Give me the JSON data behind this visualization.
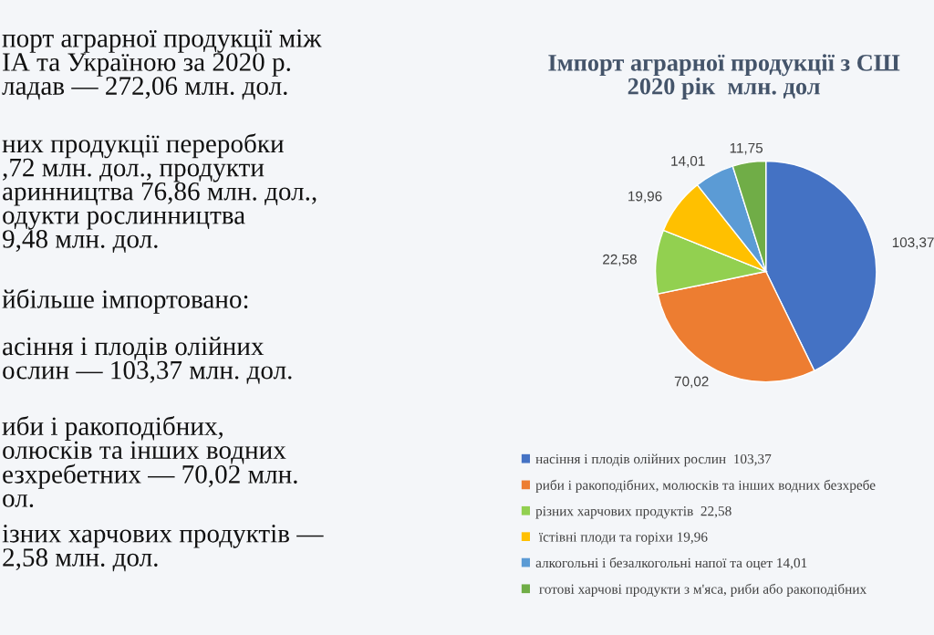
{
  "chart_data": {
    "type": "pie",
    "title": "Імпорт аграрної продукції з СШ\n2020 рік  млн. дол",
    "categories": [
      "насіння і плодів олійних рослин  103,37",
      "риби і ракоподібних, молюсків та інших водних безхребе",
      "різних харчових продуктів  22,58",
      " їстівні плоди та горіхи 19,96",
      "алкогольні і безалкогольні напої та оцет 14,01",
      " готові харчові продукти з м'яса, риби або ракоподібних"
    ],
    "values": [
      103.37,
      70.02,
      22.58,
      19.96,
      14.01,
      11.75
    ],
    "colors": [
      "#4472c4",
      "#ed7d31",
      "#92d050",
      "#ffc000",
      "#5b9bd5",
      "#70ad47"
    ],
    "value_labels": [
      "103,37",
      "70,02",
      "22,58",
      "19,96",
      "14,01",
      "11,75"
    ],
    "legend": "bottom",
    "annotations": [
      "порт аграрної продукції між\nІА та Україною за 2020 р.\nладав — 272,06 млн. дол.",
      "них продукції переробки\n,72 млн. дол., продукти\nаринництва 76,86 млн. дол.,\nодукти рослинництва\n9,48 млн. дол.",
      "йбільше імпортовано:",
      "асіння і плодів олійних\nослин — 103,37 млн. дол.",
      "иби і ракоподібних,\nолюсків та інших водних\nезхребетних — 70,02 млн.\nол.",
      "ізних харчових продуктів —\n2,58 млн. дол."
    ]
  }
}
